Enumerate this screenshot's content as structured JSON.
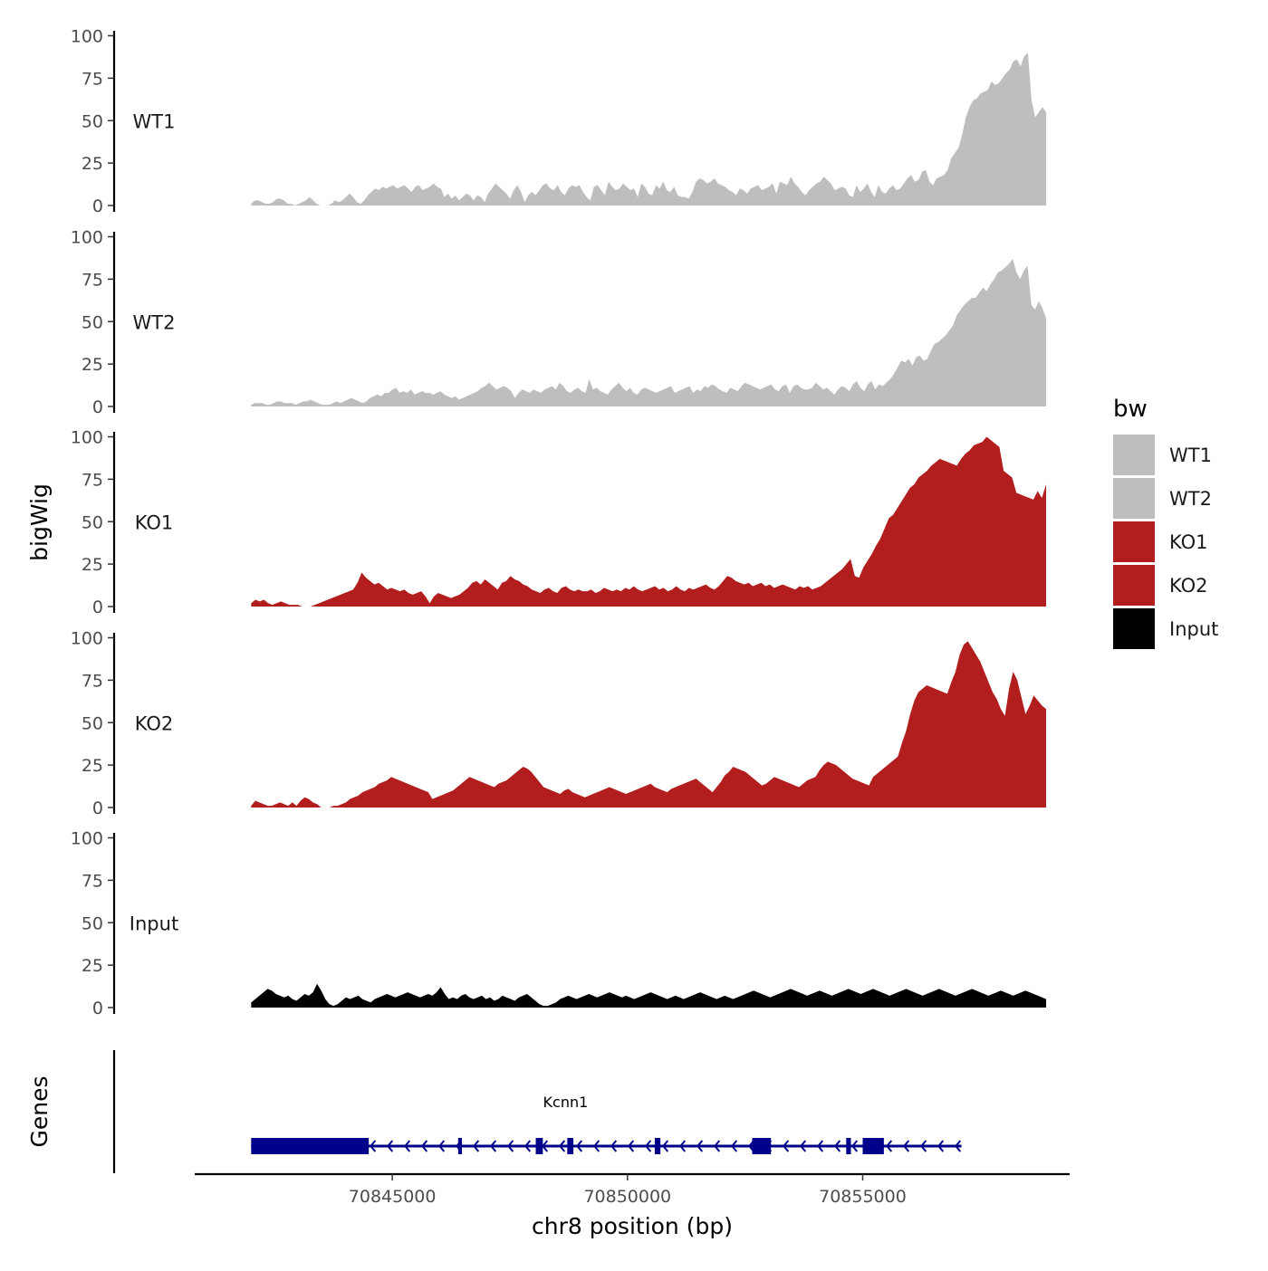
{
  "chart_data": {
    "type": "area",
    "ylabel": "bigWig",
    "xlabel": "chr8 position (bp)",
    "genes_label": "Genes",
    "yticks": [
      0,
      25,
      50,
      75,
      100
    ],
    "ylim": [
      0,
      100
    ],
    "xlim": [
      70840800,
      70859400
    ],
    "xticks": [
      70845000,
      70850000,
      70855000
    ],
    "xtick_labels": [
      "70845000",
      "70850000",
      "70855000"
    ],
    "data_x_range": [
      70842000,
      70858900
    ],
    "legend": {
      "title": "bw",
      "entries": [
        {
          "label": "WT1",
          "color": "#bebebe"
        },
        {
          "label": "WT2",
          "color": "#bebebe"
        },
        {
          "label": "KO1",
          "color": "#b21e1e"
        },
        {
          "label": "KO2",
          "color": "#b21e1e"
        },
        {
          "label": "Input",
          "color": "#000000"
        }
      ]
    },
    "series": [
      {
        "name": "WT1",
        "color": "#bebebe",
        "values": [
          1,
          3,
          3,
          2,
          1,
          1,
          2,
          4,
          4,
          3,
          1,
          1,
          0,
          1,
          2,
          3,
          5,
          3,
          1,
          0,
          0,
          0,
          1,
          3,
          2,
          3,
          5,
          7,
          5,
          2,
          1,
          3,
          6,
          8,
          10,
          9,
          11,
          10,
          11,
          12,
          10,
          11,
          12,
          10,
          8,
          11,
          12,
          9,
          10,
          11,
          13,
          11,
          10,
          5,
          7,
          4,
          6,
          3,
          5,
          7,
          6,
          3,
          6,
          5,
          2,
          7,
          10,
          13,
          11,
          9,
          7,
          4,
          9,
          12,
          8,
          2,
          6,
          8,
          6,
          9,
          12,
          13,
          10,
          9,
          12,
          8,
          6,
          10,
          12,
          11,
          12,
          8,
          5,
          3,
          11,
          12,
          9,
          6,
          14,
          11,
          9,
          10,
          13,
          11,
          9,
          10,
          5,
          13,
          11,
          7,
          6,
          12,
          10,
          14,
          9,
          8,
          11,
          6,
          5,
          5,
          4,
          8,
          14,
          16,
          15,
          13,
          14,
          16,
          13,
          12,
          11,
          9,
          8,
          6,
          10,
          9,
          7,
          10,
          11,
          12,
          9,
          10,
          11,
          13,
          7,
          14,
          13,
          12,
          17,
          13,
          11,
          8,
          6,
          9,
          11,
          13,
          14,
          17,
          15,
          13,
          9,
          10,
          11,
          10,
          6,
          5,
          12,
          8,
          10,
          13,
          8,
          5,
          12,
          8,
          7,
          10,
          12,
          9,
          10,
          13,
          16,
          18,
          14,
          15,
          20,
          21,
          14,
          12,
          16,
          17,
          18,
          21,
          28,
          31,
          34,
          42,
          52,
          58,
          62,
          63,
          66,
          67,
          68,
          73,
          71,
          72,
          75,
          78,
          80,
          85,
          86,
          82,
          88,
          90,
          62,
          52,
          55,
          58,
          55
        ]
      },
      {
        "name": "WT2",
        "color": "#bebebe",
        "values": [
          1,
          2,
          2,
          2,
          1,
          1,
          2,
          3,
          3,
          2,
          2,
          2,
          1,
          2,
          3,
          3,
          4,
          3,
          2,
          1,
          1,
          1,
          2,
          3,
          2,
          3,
          4,
          5,
          4,
          3,
          2,
          3,
          5,
          6,
          7,
          6,
          8,
          8,
          10,
          11,
          8,
          9,
          8,
          10,
          7,
          8,
          9,
          8,
          8,
          7,
          8,
          9,
          7,
          6,
          5,
          6,
          4,
          5,
          6,
          7,
          8,
          9,
          11,
          12,
          14,
          12,
          10,
          11,
          12,
          11,
          9,
          5,
          8,
          10,
          9,
          8,
          10,
          9,
          8,
          10,
          11,
          12,
          10,
          14,
          12,
          9,
          8,
          10,
          11,
          9,
          8,
          16,
          10,
          11,
          9,
          8,
          7,
          10,
          12,
          14,
          11,
          9,
          11,
          8,
          7,
          10,
          11,
          10,
          9,
          8,
          9,
          10,
          11,
          12,
          8,
          9,
          10,
          11,
          12,
          8,
          10,
          9,
          12,
          11,
          13,
          12,
          10,
          9,
          8,
          11,
          10,
          9,
          12,
          14,
          13,
          12,
          11,
          10,
          11,
          12,
          13,
          10,
          9,
          12,
          13,
          8,
          12,
          13,
          11,
          10,
          10,
          11,
          14,
          12,
          10,
          11,
          9,
          7,
          10,
          12,
          11,
          9,
          13,
          15,
          11,
          9,
          13,
          15,
          10,
          13,
          12,
          14,
          16,
          19,
          23,
          27,
          26,
          28,
          24,
          29,
          30,
          27,
          28,
          33,
          37,
          38,
          40,
          42,
          45,
          48,
          54,
          57,
          60,
          62,
          64,
          64,
          67,
          70,
          68,
          72,
          75,
          79,
          80,
          82,
          84,
          87,
          79,
          75,
          80,
          83,
          60,
          57,
          62,
          58,
          52
        ]
      },
      {
        "name": "KO1",
        "color": "#b21e1e",
        "values": [
          2,
          4,
          3,
          4,
          2,
          1,
          2,
          3,
          2,
          1,
          1,
          1,
          0,
          0,
          0,
          1,
          2,
          3,
          4,
          5,
          6,
          7,
          8,
          9,
          10,
          14,
          20,
          17,
          15,
          13,
          14,
          12,
          10,
          11,
          10,
          9,
          10,
          8,
          7,
          8,
          9,
          6,
          2,
          6,
          8,
          7,
          6,
          5,
          6,
          7,
          9,
          11,
          14,
          15,
          13,
          16,
          14,
          12,
          10,
          14,
          15,
          18,
          16,
          15,
          13,
          12,
          10,
          9,
          8,
          10,
          11,
          9,
          8,
          11,
          12,
          10,
          9,
          10,
          9,
          9,
          10,
          8,
          9,
          11,
          10,
          9,
          10,
          9,
          11,
          10,
          12,
          10,
          9,
          10,
          11,
          12,
          10,
          11,
          9,
          10,
          12,
          10,
          9,
          11,
          10,
          11,
          12,
          13,
          11,
          10,
          12,
          15,
          18,
          17,
          15,
          14,
          13,
          14,
          12,
          13,
          14,
          12,
          13,
          11,
          12,
          13,
          12,
          11,
          10,
          12,
          11,
          12,
          10,
          11,
          12,
          14,
          16,
          18,
          20,
          22,
          25,
          28,
          18,
          17,
          23,
          27,
          31,
          36,
          40,
          46,
          52,
          54,
          58,
          62,
          66,
          70,
          72,
          76,
          78,
          80,
          83,
          85,
          87,
          86,
          85,
          84,
          83,
          87,
          90,
          92,
          95,
          96,
          97,
          100,
          98,
          96,
          94,
          80,
          78,
          76,
          67,
          66,
          65,
          64,
          63,
          68,
          64,
          72
        ]
      },
      {
        "name": "KO2",
        "color": "#b21e1e",
        "values": [
          1,
          4,
          3,
          2,
          1,
          1,
          2,
          3,
          2,
          1,
          3,
          1,
          4,
          6,
          5,
          3,
          2,
          0,
          0,
          0,
          1,
          1,
          2,
          3,
          5,
          6,
          7,
          9,
          10,
          11,
          12,
          14,
          15,
          16,
          18,
          17,
          16,
          15,
          14,
          13,
          12,
          11,
          10,
          9,
          5,
          6,
          7,
          8,
          9,
          10,
          12,
          14,
          16,
          18,
          17,
          16,
          15,
          14,
          13,
          12,
          14,
          15,
          16,
          18,
          20,
          22,
          24,
          23,
          21,
          18,
          15,
          12,
          11,
          10,
          9,
          8,
          10,
          11,
          9,
          8,
          7,
          6,
          7,
          8,
          9,
          10,
          11,
          12,
          11,
          10,
          9,
          8,
          9,
          10,
          11,
          12,
          13,
          14,
          12,
          11,
          10,
          9,
          11,
          12,
          13,
          14,
          15,
          16,
          17,
          15,
          13,
          11,
          9,
          12,
          15,
          19,
          21,
          24,
          23,
          22,
          21,
          19,
          17,
          15,
          13,
          14,
          16,
          18,
          17,
          16,
          15,
          14,
          13,
          12,
          14,
          16,
          17,
          18,
          22,
          25,
          27,
          26,
          25,
          23,
          21,
          19,
          17,
          16,
          15,
          14,
          13,
          18,
          20,
          22,
          24,
          26,
          28,
          30,
          38,
          45,
          55,
          63,
          68,
          70,
          72,
          71,
          70,
          69,
          68,
          67,
          74,
          80,
          90,
          96,
          98,
          94,
          90,
          86,
          80,
          74,
          68,
          64,
          58,
          54,
          70,
          80,
          75,
          65,
          55,
          60,
          66,
          63,
          60,
          58
        ]
      },
      {
        "name": "Input",
        "color": "#000000",
        "values": [
          3,
          5,
          7,
          9,
          11,
          10,
          8,
          7,
          6,
          7,
          5,
          4,
          6,
          8,
          7,
          9,
          14,
          10,
          5,
          2,
          1,
          2,
          4,
          6,
          5,
          6,
          7,
          5,
          4,
          3,
          5,
          6,
          7,
          8,
          7,
          6,
          7,
          8,
          9,
          8,
          7,
          6,
          7,
          8,
          7,
          9,
          12,
          8,
          5,
          6,
          5,
          7,
          8,
          6,
          5,
          6,
          7,
          5,
          6,
          4,
          5,
          7,
          6,
          5,
          4,
          6,
          7,
          8,
          6,
          4,
          2,
          1,
          1,
          2,
          3,
          5,
          6,
          7,
          6,
          5,
          6,
          7,
          8,
          7,
          6,
          7,
          8,
          9,
          8,
          7,
          6,
          7,
          6,
          5,
          6,
          7,
          8,
          9,
          8,
          7,
          6,
          5,
          6,
          7,
          6,
          5,
          6,
          7,
          8,
          9,
          8,
          7,
          6,
          5,
          6,
          7,
          6,
          5,
          6,
          7,
          8,
          9,
          10,
          9,
          8,
          7,
          6,
          7,
          8,
          9,
          10,
          11,
          10,
          9,
          8,
          7,
          8,
          9,
          10,
          9,
          8,
          7,
          8,
          9,
          10,
          11,
          10,
          9,
          8,
          9,
          10,
          11,
          10,
          9,
          8,
          7,
          8,
          9,
          10,
          11,
          10,
          9,
          8,
          7,
          8,
          9,
          10,
          11,
          10,
          9,
          8,
          7,
          8,
          9,
          10,
          11,
          10,
          9,
          8,
          7,
          8,
          9,
          10,
          9,
          8,
          7,
          8,
          9,
          10,
          9,
          8,
          7,
          6,
          5
        ]
      }
    ],
    "gene": {
      "name": "Kcnn1",
      "strand": "-",
      "start": 70842000,
      "end": 70857100,
      "color": "#00008b",
      "exons": [
        {
          "start": 70842000,
          "end": 70844500
        },
        {
          "start": 70846400,
          "end": 70846480
        },
        {
          "start": 70848050,
          "end": 70848200
        },
        {
          "start": 70848720,
          "end": 70848850
        },
        {
          "start": 70850580,
          "end": 70850700
        },
        {
          "start": 70852650,
          "end": 70853050
        },
        {
          "start": 70854650,
          "end": 70854750
        },
        {
          "start": 70855000,
          "end": 70855450
        }
      ]
    }
  }
}
